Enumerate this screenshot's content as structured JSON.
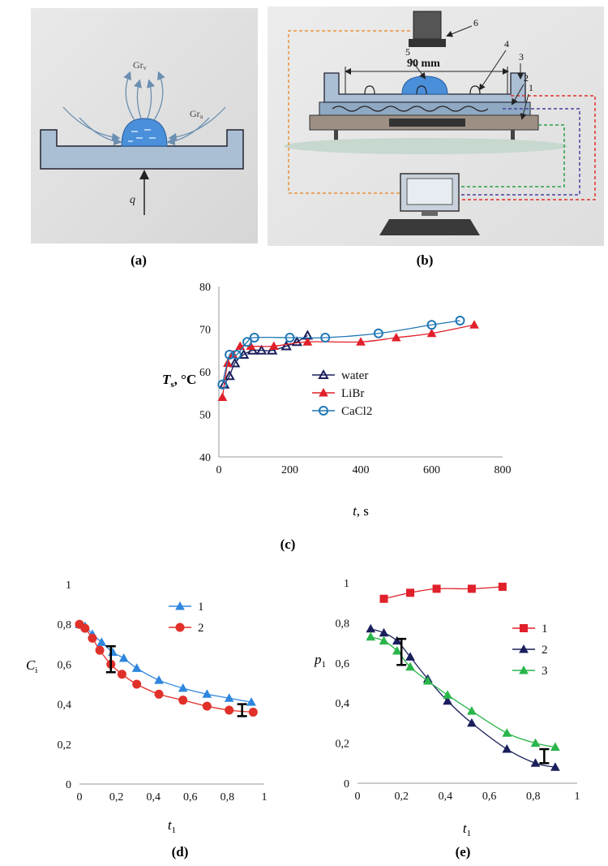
{
  "panel_a": {
    "caption": "(a)",
    "label_grv": "Gr",
    "label_grv_sub": "v",
    "label_gra": "Gr",
    "label_gra_sub": "a",
    "label_q": "q"
  },
  "panel_b": {
    "caption": "(b)",
    "dimension_label": "90 mm",
    "callouts": [
      "1",
      "2",
      "3",
      "4",
      "5",
      "6"
    ],
    "colors": {
      "orange": "#e8913a",
      "purple": "#4b3fa0",
      "red": "#e0302a",
      "green": "#2aa048"
    }
  },
  "chart_data": [
    {
      "id": "c",
      "type": "scatter",
      "caption": "(c)",
      "ylabel": "T",
      "ylabel_sub": "s",
      "ylabel_unit": ", °C",
      "xlabel": "t",
      "xlabel_unit": ", s",
      "xlim": [
        0,
        800
      ],
      "ylim": [
        40,
        80
      ],
      "xticks": [
        "0",
        "200",
        "400",
        "600",
        "800"
      ],
      "yticks": [
        "40",
        "50",
        "60",
        "70",
        "80"
      ],
      "series": [
        {
          "name": "water",
          "marker": "triangle-open",
          "color": "#1a1f5c",
          "x": [
            15,
            30,
            45,
            70,
            95,
            120,
            150,
            190,
            220,
            250
          ],
          "y": [
            57,
            59,
            62,
            64,
            65,
            65,
            65,
            66,
            67,
            68.5
          ]
        },
        {
          "name": "LiBr",
          "marker": "triangle-filled",
          "color": "#e0202a",
          "x": [
            10,
            25,
            40,
            60,
            90,
            155,
            250,
            400,
            500,
            600,
            720
          ],
          "y": [
            54,
            62,
            64,
            66,
            66,
            66,
            67,
            67,
            68,
            69,
            71
          ]
        },
        {
          "name": "CaCl2",
          "marker": "circle-open",
          "color": "#1f77b4",
          "x": [
            10,
            30,
            50,
            80,
            100,
            200,
            300,
            450,
            600,
            680
          ],
          "y": [
            57,
            64,
            64,
            67,
            68,
            68,
            68,
            69,
            71,
            72
          ]
        }
      ]
    },
    {
      "id": "d",
      "type": "line",
      "caption": "(d)",
      "ylabel": "C",
      "ylabel_sub": "i",
      "xlabel": "t",
      "xlabel_sub": "1",
      "xlim": [
        0,
        1
      ],
      "ylim": [
        0,
        1
      ],
      "xticks": [
        "0",
        "0,2",
        "0,4",
        "0,6",
        "0,8",
        "1"
      ],
      "yticks": [
        "0",
        "0,2",
        "0,4",
        "0,6",
        "0,8",
        "1"
      ],
      "series": [
        {
          "name": "1",
          "marker": "triangle-filled",
          "color": "#2e86de",
          "x": [
            0,
            0.03,
            0.07,
            0.12,
            0.18,
            0.24,
            0.31,
            0.43,
            0.56,
            0.69,
            0.81,
            0.93
          ],
          "y": [
            0.8,
            0.79,
            0.75,
            0.71,
            0.66,
            0.63,
            0.58,
            0.52,
            0.48,
            0.45,
            0.43,
            0.41
          ]
        },
        {
          "name": "2",
          "marker": "circle-filled",
          "color": "#e0302a",
          "x": [
            0,
            0.03,
            0.07,
            0.11,
            0.17,
            0.23,
            0.31,
            0.43,
            0.56,
            0.69,
            0.81,
            0.94
          ],
          "y": [
            0.8,
            0.78,
            0.73,
            0.67,
            0.6,
            0.55,
            0.5,
            0.45,
            0.42,
            0.39,
            0.37,
            0.36
          ]
        }
      ],
      "error_bars": [
        {
          "x": 0.17,
          "y_low": 0.56,
          "y_high": 0.69
        },
        {
          "x": 0.88,
          "y_low": 0.34,
          "y_high": 0.4
        }
      ]
    },
    {
      "id": "e",
      "type": "line",
      "caption": "(e)",
      "ylabel": "p",
      "ylabel_sub": "1",
      "xlabel": "t",
      "xlabel_sub": "1",
      "xlim": [
        0,
        1
      ],
      "ylim": [
        0,
        1
      ],
      "xticks": [
        "0",
        "0,2",
        "0,4",
        "0,6",
        "0,8",
        "1"
      ],
      "yticks": [
        "0",
        "0,2",
        "0,4",
        "0,6",
        "0,8",
        "1"
      ],
      "series": [
        {
          "name": "1",
          "marker": "square-filled",
          "color": "#e0202a",
          "x": [
            0.12,
            0.24,
            0.36,
            0.52,
            0.66
          ],
          "y": [
            0.92,
            0.95,
            0.97,
            0.97,
            0.98
          ]
        },
        {
          "name": "2",
          "marker": "triangle-filled",
          "color": "#1a1f5c",
          "x": [
            0.06,
            0.12,
            0.18,
            0.24,
            0.32,
            0.41,
            0.52,
            0.68,
            0.81,
            0.9
          ],
          "y": [
            0.77,
            0.75,
            0.71,
            0.63,
            0.52,
            0.41,
            0.3,
            0.17,
            0.1,
            0.08
          ]
        },
        {
          "name": "3",
          "marker": "triangle-filled",
          "color": "#2ab54a",
          "x": [
            0.06,
            0.12,
            0.18,
            0.24,
            0.32,
            0.41,
            0.52,
            0.68,
            0.81,
            0.9
          ],
          "y": [
            0.73,
            0.71,
            0.66,
            0.58,
            0.51,
            0.44,
            0.36,
            0.25,
            0.2,
            0.18
          ]
        }
      ],
      "error_bars": [
        {
          "x": 0.2,
          "y_low": 0.59,
          "y_high": 0.72
        },
        {
          "x": 0.85,
          "y_low": 0.1,
          "y_high": 0.17
        }
      ]
    }
  ]
}
